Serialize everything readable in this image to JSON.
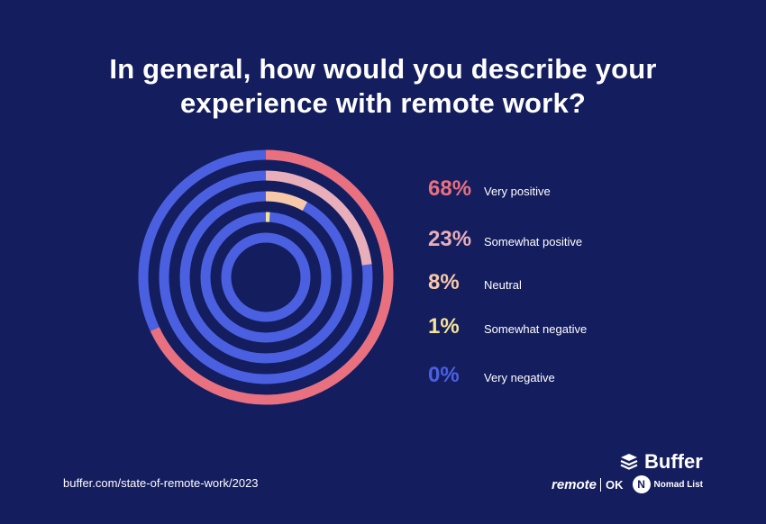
{
  "title_lines": [
    "In general, how would you describe your",
    "experience with remote work?"
  ],
  "source": "buffer.com/state-of-remote-work/2023",
  "logos": {
    "buffer": "Buffer",
    "remote": "remote",
    "ok": "OK",
    "nomad_badge": "N",
    "nomad": "Nomad List"
  },
  "colors": {
    "background": "#141d5e",
    "base_ring": "#4a60e0"
  },
  "chart_data": {
    "type": "radial-bar",
    "unit": "%",
    "categories": [
      "Very positive",
      "Somewhat positive",
      "Neutral",
      "Somewhat negative",
      "Very negative"
    ],
    "values": [
      68,
      23,
      8,
      1,
      0
    ],
    "labels": [
      "68%",
      "23%",
      "8%",
      "1%",
      "0%"
    ],
    "series_colors": [
      "#e9707f",
      "#e8aeb9",
      "#f7c9a8",
      "#f4e39a",
      "#4a60e0"
    ],
    "range": [
      0,
      100
    ],
    "legend_position": "right"
  }
}
